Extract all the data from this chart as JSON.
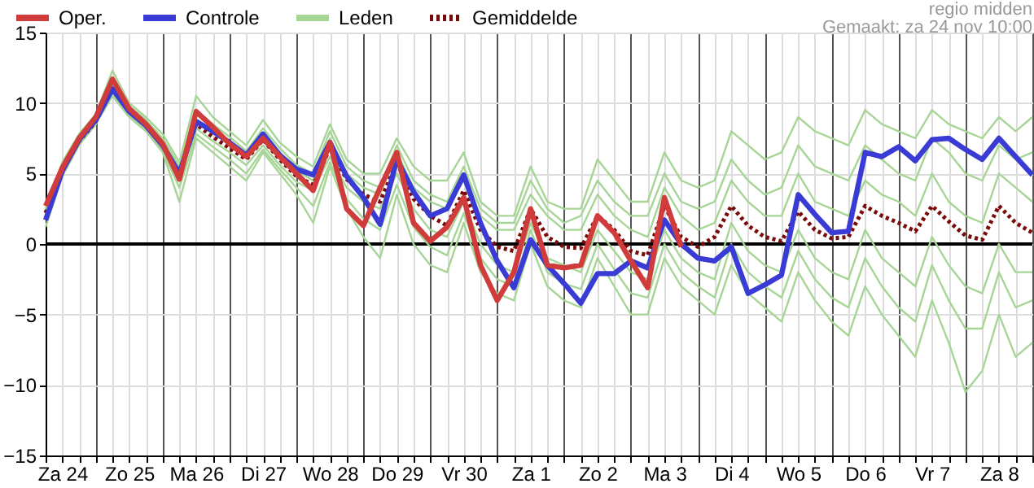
{
  "chart_data": {
    "type": "line",
    "categories": [
      null,
      "Za 24",
      null,
      null,
      null,
      "Zo 25",
      null,
      null,
      null,
      "Ma 26",
      null,
      null,
      null,
      "Di 27",
      null,
      null,
      null,
      "Wo 28",
      null,
      null,
      null,
      "Do 29",
      null,
      null,
      null,
      "Vr 30",
      null,
      null,
      null,
      "Za 1",
      null,
      null,
      null,
      "Zo 2",
      null,
      null,
      null,
      "Ma 3",
      null,
      null,
      null,
      "Di 4",
      null,
      null,
      null,
      "Wo 5",
      null,
      null,
      null,
      "Do 6",
      null,
      null,
      null,
      "Vr 7",
      null,
      null,
      null,
      "Za 8",
      null,
      null
    ],
    "ylim": [
      -15,
      15
    ],
    "yticks": [
      -15,
      -10,
      -5,
      0,
      5,
      10,
      15
    ],
    "grid": true,
    "legend": "top left",
    "annotations": [
      "regio midden",
      "Gemaakt: za 24 nov 10:00"
    ],
    "ref_lines": [
      {
        "axis": "y",
        "value": 0,
        "color": "#000000"
      }
    ],
    "series": [
      {
        "name": "Oper.",
        "color": "#d03c3c",
        "line_style": "solid",
        "values": [
          2.7,
          5.4,
          7.5,
          9,
          11.7,
          9.6,
          8.5,
          7.1,
          4.6,
          9.4,
          8.3,
          7.1,
          6.2,
          7.5,
          6.2,
          5,
          3.8,
          7.2,
          2.5,
          1.3,
          4,
          6.5,
          1.5,
          0.2,
          1.2,
          3.3,
          -1.5,
          -4,
          -2,
          2.5,
          -1.5,
          -1.7,
          -1.5,
          2,
          0.8,
          -1.2,
          -3.1,
          3.3,
          -0.2,
          null,
          null,
          null,
          null,
          null,
          null,
          null,
          null,
          null,
          null,
          null,
          null,
          null,
          null,
          null,
          null,
          null,
          null,
          null,
          null,
          null
        ]
      },
      {
        "name": "Controle",
        "color": "#3a3ad4",
        "line_style": "solid",
        "values": [
          1.7,
          5.2,
          7.4,
          8.8,
          11,
          9.4,
          8.4,
          7,
          5,
          8.7,
          8,
          7.2,
          6.3,
          7.8,
          6.3,
          5.3,
          4.9,
          7.2,
          4.8,
          3.3,
          1.4,
          6,
          3.7,
          2,
          2.5,
          4.9,
          1.5,
          -1.2,
          -3.1,
          0.3,
          -1.5,
          -2.8,
          -4.2,
          -2.1,
          -2.1,
          -1.2,
          -1.7,
          1.7,
          0,
          -1,
          -1.2,
          -0.2,
          -3.5,
          -2.9,
          -2.2,
          3.5,
          2.1,
          0.8,
          0.9,
          6.5,
          6.2,
          6.9,
          5.9,
          7.4,
          7.5,
          6.7,
          6,
          7.5,
          6.2,
          4.9
        ]
      },
      {
        "name": "Leden",
        "color": "#a6d596",
        "line_style": "solid",
        "values": [
          2.5,
          5.8,
          7.8,
          9.2,
          12.3,
          10,
          9,
          7.8,
          5.8,
          10.5,
          9,
          8,
          7,
          8.8,
          7.2,
          6.2,
          5.5,
          8.5,
          6,
          5,
          5,
          7.5,
          5.5,
          4.5,
          4.5,
          6.5,
          3,
          2,
          2,
          5.5,
          3,
          2.5,
          2.5,
          6,
          4.5,
          3,
          3,
          6.5,
          4.5,
          4,
          4.5,
          8,
          7,
          6,
          6.5,
          9,
          8,
          7.5,
          7,
          9.5,
          8.5,
          8,
          7.5,
          9.5,
          8.5,
          8,
          7.5,
          9,
          8,
          9
        ]
      },
      {
        "name": "Gemiddelde",
        "color": "#7a0a0a",
        "line_style": "dotted",
        "values": [
          2.2,
          5.3,
          7.3,
          8.7,
          11,
          9.5,
          8.5,
          7,
          5,
          8.5,
          7.6,
          6.8,
          6,
          7.4,
          6,
          4.8,
          4.2,
          6.8,
          4.6,
          3.5,
          3,
          5.8,
          3.2,
          2,
          1.3,
          3.8,
          1,
          -0.2,
          -0.5,
          2.5,
          0.5,
          -0.2,
          -0.3,
          2,
          1,
          -0.5,
          -0.8,
          2.7,
          0.5,
          -0.2,
          0.5,
          2.7,
          1.3,
          0.5,
          0.2,
          2.3,
          1,
          0.4,
          0.5,
          2.7,
          2,
          1.5,
          0.9,
          2.7,
          1.6,
          0.6,
          0.3,
          2.7,
          1.5,
          0.8
        ]
      },
      {
        "color": "#a6d596",
        "line_style": "solid",
        "values": [
          1.2,
          4.8,
          7,
          8.5,
          10.5,
          9,
          8,
          6.5,
          3,
          7.5,
          6.5,
          5.5,
          4.5,
          6.5,
          5,
          3.5,
          1.5,
          5.5,
          2.5,
          0.5,
          -1,
          3.5,
          0,
          -1.5,
          -2,
          1.5,
          -2,
          -3.5,
          -4,
          0,
          -3,
          -4,
          -4.5,
          -1,
          -3,
          -5,
          -5,
          -1,
          -3,
          -4,
          -5,
          -1.5,
          -3.5,
          -4.5,
          -5.5,
          -2,
          -4,
          -5.5,
          -6.5,
          -3,
          -5,
          -6.5,
          -8,
          -4,
          -7,
          -10.5,
          -9,
          -5,
          -8,
          -7
        ]
      },
      {
        "color": "#a6d596",
        "line_style": "solid",
        "values": [
          2.2,
          5.5,
          7.5,
          9,
          11.2,
          9.7,
          8.7,
          7.3,
          5.3,
          8.8,
          8,
          7.2,
          6.3,
          7.8,
          6.5,
          5.2,
          4.5,
          7.5,
          5,
          4,
          3.5,
          6.5,
          4,
          3,
          2.5,
          4.5,
          2,
          1,
          1,
          3.5,
          2,
          1,
          1,
          3.5,
          2,
          1,
          0.5,
          4,
          2,
          1,
          1.5,
          4.5,
          3,
          2,
          2,
          5,
          3,
          2.5,
          2,
          4.5,
          3.5,
          3,
          2,
          5,
          3,
          2,
          1.5,
          5,
          4,
          3
        ]
      },
      {
        "color": "#a6d596",
        "line_style": "solid",
        "values": [
          2,
          5,
          7.2,
          8.6,
          10.8,
          9.3,
          8.3,
          6.8,
          4.7,
          8.2,
          7.3,
          6.5,
          5.6,
          7,
          5.6,
          4.4,
          3.8,
          6.2,
          4,
          3,
          2.5,
          5,
          2.5,
          1,
          0.5,
          3,
          0,
          -1.5,
          -2,
          1.5,
          -1,
          -1.5,
          -2,
          1,
          -0.5,
          -2,
          -2.5,
          1,
          -1,
          -2,
          -2.5,
          1.5,
          -0.5,
          -1.5,
          -2,
          1,
          -1,
          -2,
          -2.5,
          1,
          -1,
          -2,
          -3,
          0.5,
          -1.5,
          -3,
          -3.5,
          0,
          -2,
          -2
        ]
      },
      {
        "color": "#a6d596",
        "line_style": "solid",
        "values": [
          2.4,
          5.6,
          7.6,
          9.1,
          11.5,
          9.8,
          8.8,
          7.5,
          5.5,
          9.5,
          8.5,
          7.6,
          6.6,
          8.2,
          6.8,
          5.6,
          5,
          8,
          5.5,
          4.5,
          4,
          7,
          4.5,
          3.5,
          3,
          5.5,
          2.5,
          1.5,
          1.5,
          4.5,
          2.5,
          1.5,
          2,
          4.5,
          3,
          2,
          2,
          5,
          3,
          2.5,
          3,
          6,
          4.5,
          3.5,
          4,
          7,
          5.5,
          5,
          4.5,
          7,
          6,
          5,
          4.5,
          7.5,
          6.5,
          5,
          4.5,
          7,
          6,
          6.5
        ]
      },
      {
        "color": "#a6d596",
        "line_style": "solid",
        "values": [
          1.9,
          4.9,
          7.1,
          8.5,
          10.6,
          9.1,
          8.1,
          6.6,
          4,
          7.8,
          6.9,
          6,
          5,
          6.7,
          5.3,
          4,
          2.7,
          5.8,
          3.2,
          1.8,
          1,
          4.2,
          1.2,
          -0.2,
          -0.8,
          2.2,
          -1,
          -2.5,
          -3,
          1,
          -2,
          -2.8,
          -3.2,
          0,
          -1.8,
          -3.5,
          -3.8,
          0,
          -2,
          -3,
          -3.8,
          0,
          -2,
          -3,
          -3.8,
          -0.5,
          -2.5,
          -3.8,
          -4.5,
          -1,
          -3,
          -4.5,
          -5.5,
          -1.5,
          -4,
          -6,
          -6,
          -2,
          -4.5,
          -4
        ]
      }
    ]
  }
}
